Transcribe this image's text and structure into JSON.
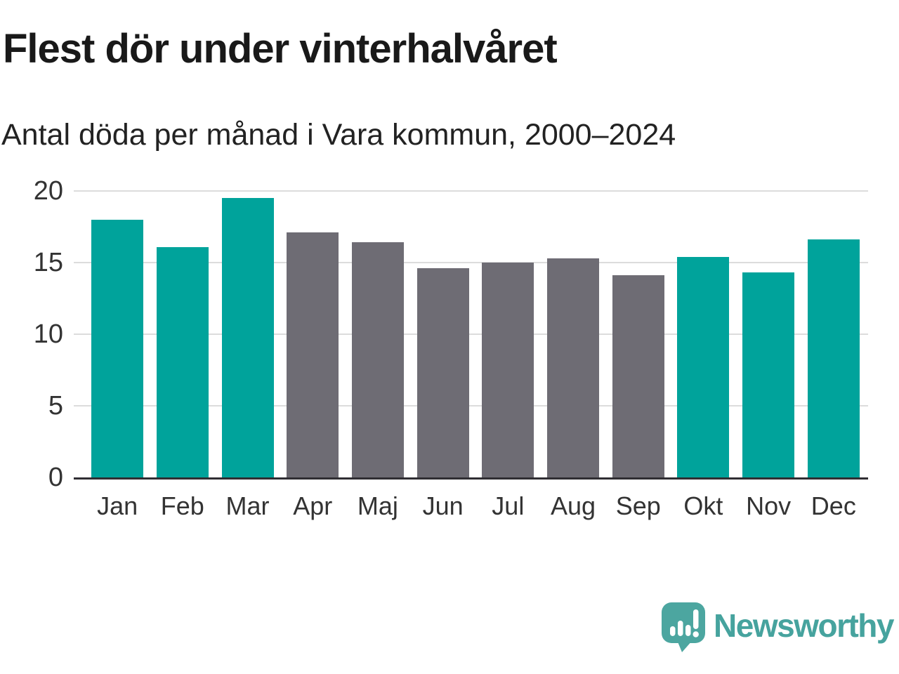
{
  "chart_data": {
    "type": "bar",
    "title": "Flest dör under vinterhalvåret",
    "subtitle": "Antal döda per månad i Vara kommun, 2000–2024",
    "categories": [
      "Jan",
      "Feb",
      "Mar",
      "Apr",
      "Maj",
      "Jun",
      "Jul",
      "Aug",
      "Sep",
      "Okt",
      "Nov",
      "Dec"
    ],
    "values": [
      18.0,
      16.1,
      19.5,
      17.1,
      16.4,
      14.6,
      15.0,
      15.3,
      14.1,
      15.4,
      14.3,
      16.6
    ],
    "bar_colors": [
      "#00A39B",
      "#00A39B",
      "#00A39B",
      "#6E6C74",
      "#6E6C74",
      "#6E6C74",
      "#6E6C74",
      "#6E6C74",
      "#6E6C74",
      "#00A39B",
      "#00A39B",
      "#00A39B"
    ],
    "highlight_color": "#00A39B",
    "muted_color": "#6E6C74",
    "xlabel": "",
    "ylabel": "",
    "ylim": [
      0,
      20
    ],
    "yticks": [
      0,
      5,
      10,
      15,
      20
    ],
    "grid": true,
    "legend_position": "none",
    "gridline_color": "#dcdcdc",
    "axis_color": "#302e33"
  },
  "footer": {
    "brand": "Newsworthy",
    "brand_color": "#46A39E"
  }
}
